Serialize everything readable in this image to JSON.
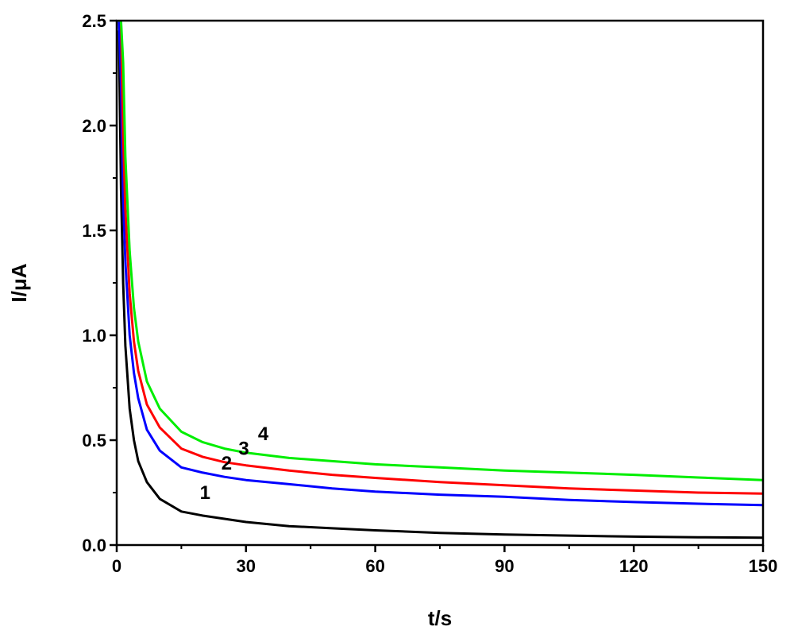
{
  "chart_data": {
    "type": "line",
    "title": "",
    "xlabel": "t/s",
    "ylabel": "I/μA",
    "xlim": [
      0,
      150
    ],
    "ylim": [
      0,
      2.5
    ],
    "x_ticks": [
      0,
      30,
      60,
      90,
      120,
      150
    ],
    "x_tick_labels": [
      "0",
      "30",
      "60",
      "90",
      "120",
      "150"
    ],
    "y_ticks": [
      0,
      0.5,
      1.0,
      1.5,
      2.0,
      2.5
    ],
    "y_tick_labels": [
      "0.0",
      "0.5",
      "1.0",
      "1.5",
      "2.0",
      "2.5"
    ],
    "grid": false,
    "x": [
      0.5,
      1,
      1.5,
      2,
      3,
      4,
      5,
      7,
      10,
      15,
      20,
      25,
      30,
      40,
      50,
      60,
      75,
      90,
      105,
      120,
      135,
      150
    ],
    "series": [
      {
        "label": "1",
        "color": "#000000",
        "values": [
          2.45,
          1.7,
          1.25,
          0.95,
          0.65,
          0.5,
          0.4,
          0.3,
          0.22,
          0.16,
          0.14,
          0.125,
          0.11,
          0.09,
          0.08,
          0.07,
          0.058,
          0.05,
          0.045,
          0.04,
          0.037,
          0.035
        ]
      },
      {
        "label": "2",
        "color": "#0000ff",
        "values": [
          2.5,
          2.2,
          1.65,
          1.35,
          1.0,
          0.82,
          0.7,
          0.55,
          0.45,
          0.37,
          0.345,
          0.325,
          0.31,
          0.29,
          0.27,
          0.255,
          0.24,
          0.23,
          0.215,
          0.205,
          0.197,
          0.19
        ]
      },
      {
        "label": "3",
        "color": "#ff0000",
        "values": [
          2.5,
          2.5,
          1.95,
          1.6,
          1.2,
          0.97,
          0.83,
          0.67,
          0.56,
          0.46,
          0.42,
          0.395,
          0.38,
          0.355,
          0.335,
          0.32,
          0.3,
          0.285,
          0.27,
          0.26,
          0.25,
          0.245
        ]
      },
      {
        "label": "4",
        "color": "#00ee00",
        "values": [
          2.5,
          2.5,
          2.3,
          1.85,
          1.4,
          1.13,
          0.97,
          0.78,
          0.65,
          0.54,
          0.49,
          0.46,
          0.44,
          0.415,
          0.4,
          0.385,
          0.37,
          0.355,
          0.345,
          0.335,
          0.322,
          0.31
        ]
      }
    ],
    "annotations": [
      {
        "text": "1",
        "x": 20.5,
        "y": 0.22
      },
      {
        "text": "2",
        "x": 25.5,
        "y": 0.36
      },
      {
        "text": "3",
        "x": 29.5,
        "y": 0.43
      },
      {
        "text": "4",
        "x": 34,
        "y": 0.5
      }
    ]
  }
}
